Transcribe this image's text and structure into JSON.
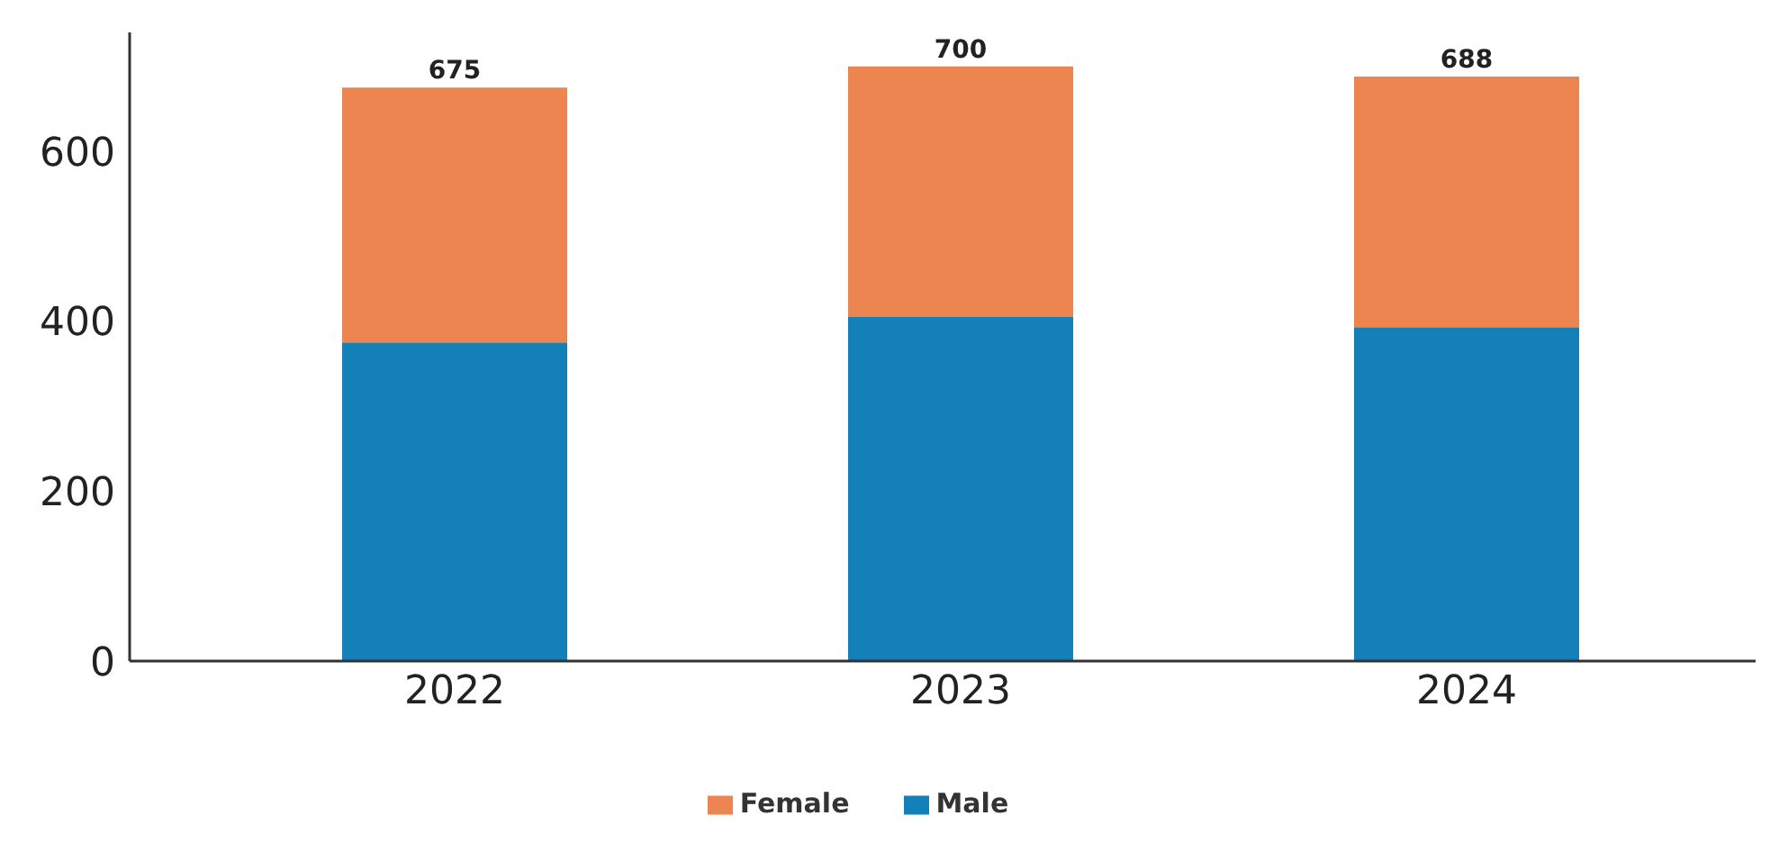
{
  "chart_data": {
    "type": "bar",
    "stacked": true,
    "categories": [
      "2022",
      "2023",
      "2024"
    ],
    "series": [
      {
        "name": "Male",
        "color": "#1380b8",
        "values": [
          375,
          405,
          393
        ]
      },
      {
        "name": "Female",
        "color": "#ec8550",
        "values": [
          300,
          295,
          295
        ]
      }
    ],
    "totals": [
      "675",
      "700",
      "688"
    ],
    "ylim": [
      0,
      740
    ],
    "yticks": [
      0,
      200,
      400,
      600
    ],
    "grid": false,
    "legend": "bottom"
  }
}
